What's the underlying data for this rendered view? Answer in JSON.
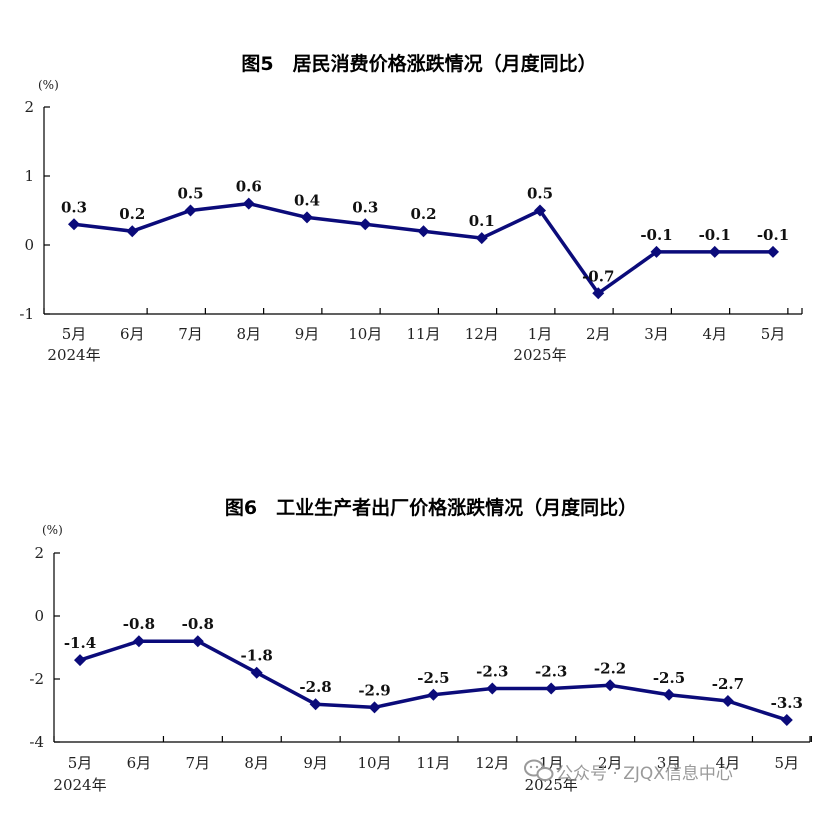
{
  "charts": [
    {
      "title": "图5　居民消费价格涨跌情况（月度同比）",
      "unit": "(%)",
      "chart_data": {
        "type": "line",
        "categories": [
          "5月",
          "6月",
          "7月",
          "8月",
          "9月",
          "10月",
          "11月",
          "12月",
          "1月",
          "2月",
          "3月",
          "4月",
          "5月"
        ],
        "year_labels": [
          {
            "index": 0,
            "text": "2024年"
          },
          {
            "index": 8,
            "text": "2025年"
          }
        ],
        "series": [
          {
            "values": [
              0.3,
              0.2,
              0.5,
              0.6,
              0.4,
              0.3,
              0.2,
              0.1,
              0.5,
              -0.7,
              -0.1,
              -0.1,
              -0.1
            ]
          }
        ],
        "data_labels": [
          "0.3",
          "0.2",
          "0.5",
          "0.6",
          "0.4",
          "0.3",
          "0.2",
          "0.1",
          "0.5",
          "-0.7",
          "-0.1",
          "-0.1",
          "-0.1"
        ],
        "ylim": [
          -1,
          2
        ],
        "yticks": [
          -1,
          0,
          1,
          2
        ],
        "grid": false,
        "color": "#0b0b7a"
      }
    },
    {
      "title": "图6　工业生产者出厂价格涨跌情况（月度同比）",
      "unit": "(%)",
      "chart_data": {
        "type": "line",
        "categories": [
          "5月",
          "6月",
          "7月",
          "8月",
          "9月",
          "10月",
          "11月",
          "12月",
          "1月",
          "2月",
          "3月",
          "4月",
          "5月"
        ],
        "year_labels": [
          {
            "index": 0,
            "text": "2024年"
          },
          {
            "index": 8,
            "text": "2025年"
          }
        ],
        "series": [
          {
            "values": [
              -1.4,
              -0.8,
              -0.8,
              -1.8,
              -2.8,
              -2.9,
              -2.5,
              -2.3,
              -2.3,
              -2.2,
              -2.5,
              -2.7,
              -3.3
            ]
          }
        ],
        "data_labels": [
          "-1.4",
          "-0.8",
          "-0.8",
          "-1.8",
          "-2.8",
          "-2.9",
          "-2.5",
          "-2.3",
          "-2.3",
          "-2.2",
          "-2.5",
          "-2.7",
          "-3.3"
        ],
        "ylim": [
          -4,
          2
        ],
        "yticks": [
          -4,
          -2,
          0,
          2
        ],
        "grid": false,
        "color": "#0b0b7a"
      }
    }
  ],
  "watermark": {
    "text": "公众号 · ZJQX信息中心",
    "icon": "wechat-icon"
  }
}
